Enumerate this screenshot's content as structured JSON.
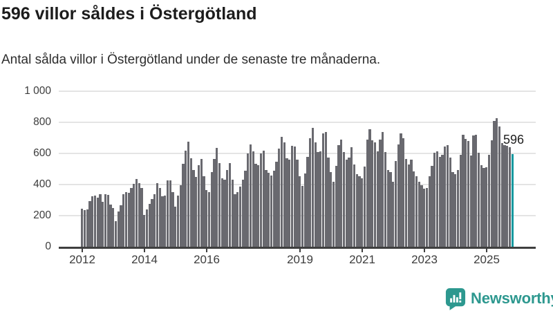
{
  "header": {
    "title": "596 villor såldes i Östergötland",
    "subtitle": "Antal sålda villor i Östergötland under de senaste tre månaderna."
  },
  "chart_data": {
    "type": "bar",
    "title": "596 villor såldes i Östergötland",
    "description": "Antal sålda villor i Östergötland, rullande tremånaderssumma per månad",
    "frequency": "monthly",
    "start_month": "2012-01",
    "values": [
      245,
      235,
      240,
      295,
      325,
      330,
      315,
      340,
      290,
      340,
      335,
      270,
      250,
      165,
      225,
      265,
      340,
      350,
      345,
      380,
      405,
      435,
      410,
      380,
      205,
      240,
      275,
      305,
      340,
      410,
      380,
      325,
      330,
      425,
      425,
      350,
      260,
      330,
      395,
      535,
      620,
      675,
      570,
      495,
      450,
      525,
      565,
      455,
      365,
      350,
      480,
      565,
      635,
      540,
      440,
      430,
      495,
      540,
      430,
      340,
      350,
      385,
      430,
      490,
      600,
      660,
      615,
      535,
      525,
      600,
      620,
      495,
      475,
      460,
      490,
      545,
      630,
      705,
      670,
      570,
      560,
      650,
      645,
      560,
      455,
      390,
      470,
      580,
      700,
      765,
      670,
      610,
      615,
      730,
      740,
      575,
      480,
      420,
      520,
      655,
      690,
      610,
      560,
      575,
      640,
      530,
      465,
      455,
      440,
      515,
      690,
      755,
      685,
      670,
      615,
      690,
      740,
      610,
      495,
      480,
      420,
      550,
      660,
      730,
      700,
      565,
      530,
      560,
      485,
      455,
      420,
      395,
      375,
      380,
      455,
      520,
      605,
      615,
      580,
      590,
      645,
      655,
      575,
      480,
      465,
      495,
      590,
      720,
      695,
      680,
      585,
      715,
      720,
      605,
      525,
      505,
      510,
      590,
      685,
      810,
      825,
      775,
      665,
      655,
      650,
      640,
      596
    ],
    "highlight": {
      "index": 166,
      "value": 596,
      "label": "596",
      "color": "#12999f"
    },
    "bar_color": "#69696f",
    "grid_color": "#e4e4e4",
    "axis_color": "#3f3f3f",
    "ylim": [
      0,
      1000
    ],
    "grid": true,
    "legend": false,
    "y_ticks": [
      {
        "value": 0,
        "label": "0"
      },
      {
        "value": 200,
        "label": "200"
      },
      {
        "value": 400,
        "label": "400"
      },
      {
        "value": 600,
        "label": "600"
      },
      {
        "value": 800,
        "label": "800"
      },
      {
        "value": 1000,
        "label": "1 000"
      }
    ],
    "x_ticks": [
      {
        "label": "2012",
        "month_index": 0
      },
      {
        "label": "2014",
        "month_index": 24
      },
      {
        "label": "2016",
        "month_index": 48
      },
      {
        "label": "2019",
        "month_index": 84
      },
      {
        "label": "2021",
        "month_index": 108
      },
      {
        "label": "2023",
        "month_index": 132
      },
      {
        "label": "2025",
        "month_index": 156
      }
    ]
  },
  "footer": {
    "brand": "Newsworthy",
    "brand_color": "#2d988f"
  }
}
